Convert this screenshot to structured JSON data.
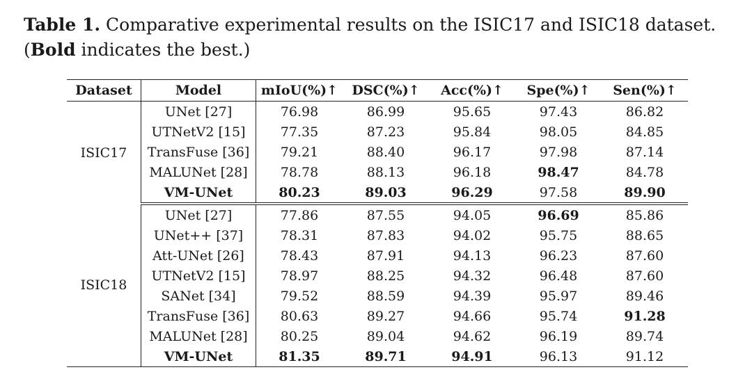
{
  "caption": {
    "label": "Table 1.",
    "text_before": " Comparative experimental results on the ISIC17 and ISIC18 dataset. (",
    "bold_word": "Bold",
    "text_after": " indicates the best.)"
  },
  "table": {
    "headers": [
      "Dataset",
      "Model",
      "mIoU(%)↑",
      "DSC(%)↑",
      "Acc(%)↑",
      "Spe(%)↑",
      "Sen(%)↑"
    ],
    "groups": [
      {
        "dataset": "ISIC17",
        "rows": [
          {
            "model": "UNet [27]",
            "values": [
              "76.98",
              "86.99",
              "95.65",
              "97.43",
              "86.82"
            ]
          },
          {
            "model": "UTNetV2 [15]",
            "values": [
              "77.35",
              "87.23",
              "95.84",
              "98.05",
              "84.85"
            ]
          },
          {
            "model": "TransFuse [36]",
            "values": [
              "79.21",
              "88.40",
              "96.17",
              "97.98",
              "87.14"
            ]
          },
          {
            "model": "MALUNet [28]",
            "values": [
              "78.78",
              "88.13",
              "96.18",
              "98.47",
              "84.78"
            ]
          },
          {
            "model": "VM-UNet",
            "values": [
              "80.23",
              "89.03",
              "96.29",
              "97.58",
              "89.90"
            ]
          }
        ]
      },
      {
        "dataset": "ISIC18",
        "rows": [
          {
            "model": "UNet [27]",
            "values": [
              "77.86",
              "87.55",
              "94.05",
              "96.69",
              "85.86"
            ]
          },
          {
            "model": "UNet++ [37]",
            "values": [
              "78.31",
              "87.83",
              "94.02",
              "95.75",
              "88.65"
            ]
          },
          {
            "model": "Att-UNet [26]",
            "values": [
              "78.43",
              "87.91",
              "94.13",
              "96.23",
              "87.60"
            ]
          },
          {
            "model": "UTNetV2 [15]",
            "values": [
              "78.97",
              "88.25",
              "94.32",
              "96.48",
              "87.60"
            ]
          },
          {
            "model": "SANet [34]",
            "values": [
              "79.52",
              "88.59",
              "94.39",
              "95.97",
              "89.46"
            ]
          },
          {
            "model": "TransFuse [36]",
            "values": [
              "80.63",
              "89.27",
              "94.66",
              "95.74",
              "91.28"
            ]
          },
          {
            "model": "MALUNet [28]",
            "values": [
              "80.25",
              "89.04",
              "94.62",
              "96.19",
              "89.74"
            ]
          },
          {
            "model": "VM-UNet",
            "values": [
              "81.35",
              "89.71",
              "94.91",
              "96.13",
              "91.12"
            ]
          }
        ]
      }
    ]
  }
}
